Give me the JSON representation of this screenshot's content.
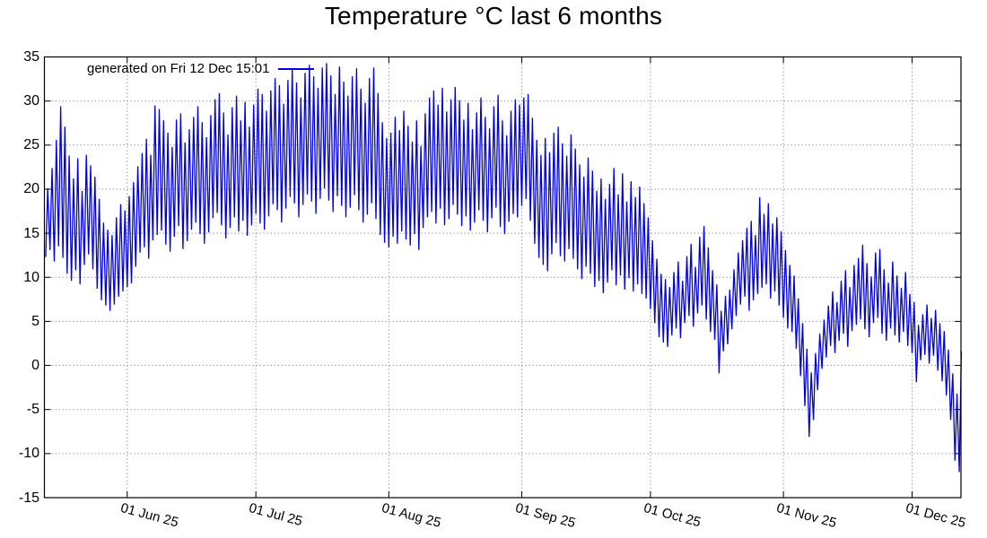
{
  "title": "Temperature °C last 6 months",
  "legend": {
    "label": "generated on Fri 12 Dec 15:01"
  },
  "chart_data": {
    "type": "line",
    "title": "Temperature °C last 6 months",
    "series": [
      {
        "name": "generated on Fri 12 Dec 15:01"
      }
    ],
    "line_color": "#0000e0",
    "grid_color": "#9e9e9e",
    "border_color": "#000000",
    "legend_position": "top-left-inside",
    "grid": "on",
    "ylabel": "",
    "xlabel": "",
    "y_range": [
      -15,
      35
    ],
    "y_tick_step": 5,
    "y_ticks": [
      "35",
      "30",
      "25",
      "20",
      "15",
      "10",
      "5",
      "0",
      "-5",
      "-10",
      "-15"
    ],
    "x_tick_labels": [
      "01 Jun 25",
      "01 Jul 25",
      "01 Aug 25",
      "01 Sep 25",
      "01 Oct 25",
      "01 Nov 25",
      "01 Dec 25"
    ],
    "x_tick_days": [
      19.3,
      49.3,
      80.3,
      111.3,
      141.3,
      172.3,
      202.3
    ],
    "x_range_days": [
      0,
      213.7
    ],
    "daily_min": [
      12.3,
      13.1,
      11.8,
      13.5,
      12.2,
      10.4,
      9.6,
      10.8,
      9.2,
      11.4,
      12.6,
      10.9,
      8.7,
      7.4,
      6.8,
      6.2,
      6.9,
      7.8,
      8.4,
      8.9,
      9.3,
      11.2,
      12.8,
      13.4,
      12.1,
      14.2,
      14.8,
      15.3,
      13.7,
      12.9,
      14.6,
      15.8,
      13.2,
      14.1,
      15.4,
      16.2,
      14.9,
      13.8,
      15.1,
      16.7,
      17.3,
      15.9,
      14.4,
      15.6,
      16.8,
      15.2,
      16.4,
      14.7,
      15.9,
      17.2,
      16.1,
      15.4,
      16.9,
      18.3,
      17.6,
      16.2,
      17.8,
      19.1,
      18.4,
      16.8,
      18.2,
      19.4,
      18.6,
      17.2,
      18.9,
      20.1,
      18.7,
      17.4,
      19.2,
      18.1,
      16.8,
      17.9,
      19.3,
      17.6,
      16.2,
      17.1,
      18.4,
      16.6,
      14.8,
      13.9,
      13.4,
      14.6,
      13.8,
      15.2,
      14.3,
      13.6,
      14.9,
      13.1,
      15.6,
      16.8,
      17.4,
      16.1,
      17.8,
      15.9,
      16.6,
      18.2,
      17.1,
      15.8,
      16.9,
      15.3,
      16.2,
      17.6,
      16.4,
      15.1,
      16.7,
      17.9,
      15.7,
      14.9,
      16.3,
      17.2,
      16.8,
      18.1,
      18.9,
      16.4,
      13.8,
      12.2,
      11.4,
      10.7,
      12.6,
      13.9,
      12.4,
      11.8,
      13.2,
      12.1,
      10.9,
      9.8,
      11.2,
      10.4,
      8.9,
      9.6,
      8.2,
      9.4,
      10.8,
      9.1,
      10.2,
      8.6,
      9.9,
      8.4,
      9.2,
      8.1,
      7.6,
      6.4,
      4.8,
      3.2,
      2.6,
      2.1,
      3.4,
      4.2,
      3.1,
      4.8,
      5.6,
      4.4,
      5.9,
      6.8,
      5.2,
      3.8,
      2.9,
      -0.9,
      1.6,
      2.4,
      4.1,
      5.6,
      6.9,
      7.8,
      6.2,
      7.4,
      8.1,
      8.8,
      9.2,
      7.6,
      8.4,
      6.8,
      5.4,
      4.2,
      3.8,
      1.9,
      -1.2,
      -4.6,
      -8.1,
      -6.2,
      -2.8,
      -0.4,
      0.9,
      2.2,
      1.4,
      2.8,
      3.6,
      2.1,
      3.9,
      4.6,
      5.2,
      4.1,
      3.2,
      4.8,
      5.4,
      3.6,
      2.8,
      4.2,
      3.4,
      2.6,
      3.8,
      2.2,
      1.4,
      -1.9,
      0.6,
      1.2,
      0.2,
      1.1,
      -0.6,
      -1.8,
      -3.4,
      -6.2,
      -10.8,
      -12.1
    ],
    "daily_max": [
      20.1,
      22.4,
      25.6,
      29.4,
      27.1,
      23.8,
      21.2,
      23.5,
      19.8,
      23.9,
      22.7,
      21.4,
      18.9,
      16.2,
      15.4,
      14.8,
      16.8,
      18.3,
      17.6,
      19.2,
      20.8,
      22.6,
      24.1,
      25.7,
      23.9,
      29.5,
      29.1,
      27.8,
      26.4,
      24.8,
      27.9,
      28.6,
      25.3,
      26.8,
      28.2,
      29.4,
      27.6,
      25.9,
      28.4,
      30.2,
      30.9,
      28.7,
      26.2,
      29.3,
      30.6,
      27.8,
      29.9,
      27.1,
      29.6,
      31.4,
      30.8,
      28.9,
      31.2,
      32.6,
      31.8,
      29.7,
      32.4,
      33.6,
      32.1,
      30.4,
      33.2,
      34.1,
      32.8,
      31.5,
      33.8,
      34.3,
      32.9,
      30.8,
      33.9,
      32.2,
      30.6,
      32.8,
      33.7,
      31.4,
      29.8,
      32.6,
      33.8,
      30.9,
      27.6,
      25.8,
      26.4,
      28.2,
      26.7,
      28.9,
      27.2,
      25.4,
      27.8,
      24.9,
      28.6,
      30.4,
      31.2,
      29.6,
      31.5,
      28.8,
      30.2,
      31.6,
      30.1,
      27.9,
      29.8,
      26.8,
      28.7,
      30.4,
      28.2,
      26.9,
      29.4,
      30.7,
      27.8,
      26.1,
      28.9,
      30.2,
      29.6,
      30.4,
      30.8,
      28.1,
      25.6,
      23.9,
      25.8,
      24.2,
      26.4,
      27.1,
      25.2,
      23.8,
      26.2,
      24.6,
      22.8,
      21.4,
      23.6,
      22.1,
      19.8,
      21.2,
      18.9,
      20.6,
      22.4,
      19.4,
      21.8,
      18.6,
      20.9,
      19.1,
      20.3,
      18.4,
      16.8,
      14.2,
      12.1,
      10.4,
      9.8,
      8.9,
      10.6,
      11.8,
      9.6,
      12.4,
      13.8,
      11.2,
      14.6,
      15.8,
      13.4,
      10.8,
      9.2,
      6.2,
      7.9,
      8.6,
      10.9,
      12.8,
      14.2,
      15.6,
      16.4,
      14.8,
      19.1,
      17.2,
      18.4,
      16.1,
      16.8,
      15.2,
      13.1,
      11.4,
      10.2,
      7.6,
      4.8,
      1.9,
      -0.8,
      1.4,
      3.6,
      5.2,
      6.8,
      8.4,
      7.2,
      9.6,
      10.8,
      8.9,
      11.4,
      12.2,
      13.7,
      11.6,
      10.1,
      12.8,
      13.2,
      10.9,
      9.4,
      11.8,
      10.2,
      8.8,
      10.6,
      8.1,
      7.2,
      4.6,
      5.8,
      6.9,
      5.4,
      6.3,
      4.8,
      3.9,
      1.8,
      -0.9,
      -3.2,
      1.6
    ]
  }
}
